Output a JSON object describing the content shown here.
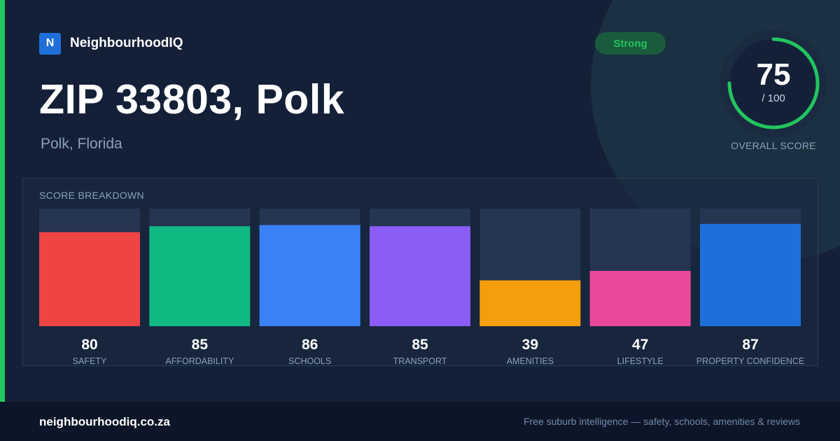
{
  "brand": {
    "logo_letter": "N",
    "name": "NeighbourhoodIQ"
  },
  "header": {
    "title": "ZIP 33803, Polk",
    "subtitle": "Polk, Florida"
  },
  "badge": {
    "label": "Strong"
  },
  "overall": {
    "score": "75",
    "max": "/ 100",
    "label": "OVERALL SCORE",
    "fraction": 0.75
  },
  "breakdown": {
    "title": "SCORE BREAKDOWN"
  },
  "chart_data": {
    "type": "bar",
    "title": "SCORE BREAKDOWN",
    "categories": [
      "SAFETY",
      "AFFORDABILITY",
      "SCHOOLS",
      "TRANSPORT",
      "AMENITIES",
      "LIFESTYLE",
      "PROPERTY CONFIDENCE"
    ],
    "values": [
      80,
      85,
      86,
      85,
      39,
      47,
      87
    ],
    "ylim": [
      0,
      100
    ],
    "colors": [
      "#ef4444",
      "#10b981",
      "#3b82f6",
      "#8b5cf6",
      "#f59e0b",
      "#ec4899",
      "#1f6fdb"
    ],
    "track_color": "#253552",
    "grid": false
  },
  "footer": {
    "url": "neighbourhoodiq.co.za",
    "tagline": "Free suburb intelligence — safety, schools, amenities & reviews"
  },
  "colors": {
    "accent": "#22c55e",
    "background": "#142038",
    "footer": "#0d1628",
    "brand": "#1f6fdb"
  }
}
